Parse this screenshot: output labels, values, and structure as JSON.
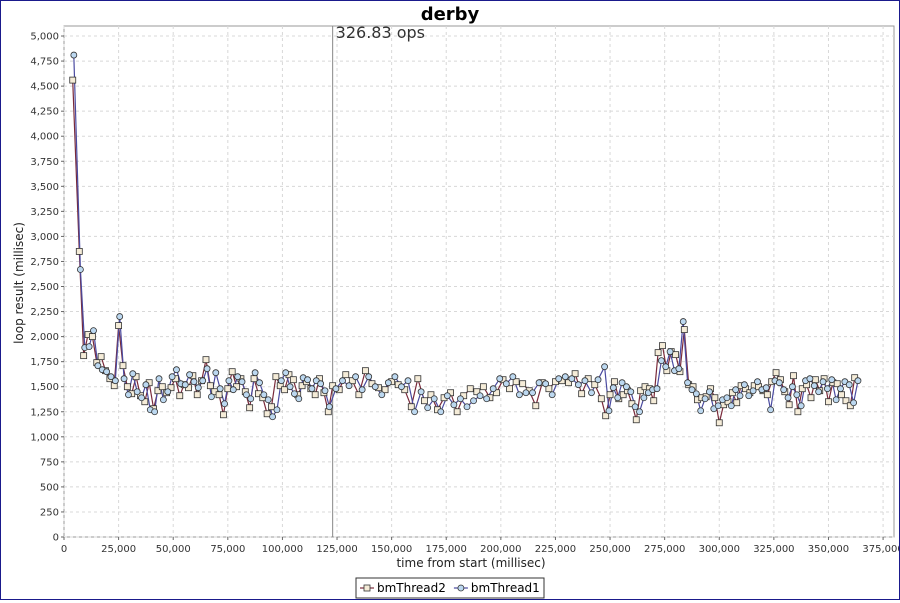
{
  "chart_data": {
    "type": "line",
    "title": "derby",
    "xlabel": "time from start (millisec)",
    "ylabel": "loop result (millisec)",
    "xlim": [
      0,
      380000
    ],
    "ylim": [
      0,
      5100
    ],
    "x_ticks": [
      0,
      25000,
      50000,
      75000,
      100000,
      125000,
      150000,
      175000,
      200000,
      225000,
      250000,
      275000,
      300000,
      325000,
      350000,
      375000
    ],
    "x_tick_labels": [
      "0",
      "25,000",
      "50,000",
      "75,000",
      "100,000",
      "125,000",
      "150,000",
      "175,000",
      "200,000",
      "225,000",
      "250,000",
      "275,000",
      "300,000",
      "325,000",
      "350,000",
      "375,000"
    ],
    "y_ticks": [
      0,
      250,
      500,
      750,
      1000,
      1250,
      1500,
      1750,
      2000,
      2250,
      2500,
      2750,
      3000,
      3250,
      3500,
      3750,
      4000,
      4250,
      4500,
      4750,
      5000
    ],
    "y_tick_labels": [
      "0",
      "250",
      "500",
      "750",
      "1,000",
      "1,250",
      "1,500",
      "1,750",
      "2,000",
      "2,250",
      "2,500",
      "2,750",
      "3,000",
      "3,250",
      "3,500",
      "3,750",
      "4,000",
      "4,250",
      "4,500",
      "4,750",
      "5,000"
    ],
    "grid": true,
    "legend_position": "bottom-center",
    "annotation": {
      "x": 123000,
      "label": "326.83 ops"
    },
    "series": [
      {
        "name": "bmThread2",
        "marker": "square",
        "color": "#7a2a3a",
        "x": [
          4000,
          7000,
          9000,
          11000,
          13000,
          15000,
          17000,
          19000,
          21000,
          23000,
          25000,
          27000,
          29000,
          31000,
          33000,
          35000,
          37000,
          39000,
          41000,
          43000,
          45000,
          47000,
          49000,
          51000,
          53000,
          55000,
          57000,
          59000,
          61000,
          63000,
          65000,
          67000,
          69000,
          71000,
          73000,
          75000,
          77000,
          79000,
          81000,
          83000,
          85000,
          87000,
          89000,
          91000,
          93000,
          95000,
          97000,
          99000,
          101000,
          103000,
          105000,
          107000,
          109000,
          111000,
          113000,
          115000,
          117000,
          119000,
          121000,
          123000,
          126000,
          129000,
          132000,
          135000,
          138000,
          141000,
          144000,
          147000,
          150000,
          153000,
          156000,
          159000,
          162000,
          165000,
          168000,
          171000,
          174000,
          177000,
          180000,
          183000,
          186000,
          189000,
          192000,
          195000,
          198000,
          201000,
          204000,
          207000,
          210000,
          213000,
          216000,
          219000,
          222000,
          225000,
          228000,
          231000,
          234000,
          237000,
          240000,
          243000,
          246000,
          248000,
          250000,
          252000,
          254000,
          256000,
          258000,
          260000,
          262000,
          264000,
          266000,
          268000,
          270000,
          272000,
          274000,
          276000,
          278000,
          280000,
          282000,
          284000,
          286000,
          288000,
          290000,
          292000,
          294000,
          296000,
          298000,
          300000,
          302000,
          304000,
          306000,
          308000,
          310000,
          312000,
          314000,
          316000,
          318000,
          320000,
          322000,
          324000,
          326000,
          328000,
          330000,
          332000,
          334000,
          336000,
          338000,
          340000,
          342000,
          344000,
          346000,
          348000,
          350000,
          352000,
          354000,
          356000,
          358000,
          360000,
          362000
        ],
        "values": [
          4560,
          2850,
          1810,
          2020,
          2000,
          1740,
          1800,
          1660,
          1580,
          1510,
          2110,
          1710,
          1500,
          1430,
          1600,
          1410,
          1350,
          1540,
          1280,
          1460,
          1500,
          1440,
          1490,
          1580,
          1410,
          1520,
          1490,
          1610,
          1420,
          1560,
          1770,
          1510,
          1450,
          1420,
          1220,
          1480,
          1650,
          1500,
          1580,
          1450,
          1290,
          1580,
          1430,
          1390,
          1230,
          1300,
          1600,
          1510,
          1470,
          1620,
          1570,
          1420,
          1510,
          1550,
          1480,
          1420,
          1580,
          1440,
          1250,
          1510,
          1470,
          1620,
          1560,
          1420,
          1660,
          1530,
          1490,
          1470,
          1550,
          1520,
          1470,
          1300,
          1580,
          1360,
          1420,
          1270,
          1390,
          1440,
          1250,
          1410,
          1480,
          1450,
          1500,
          1390,
          1440,
          1570,
          1480,
          1550,
          1530,
          1460,
          1310,
          1540,
          1480,
          1550,
          1560,
          1540,
          1630,
          1430,
          1580,
          1520,
          1380,
          1210,
          1420,
          1550,
          1380,
          1420,
          1460,
          1330,
          1170,
          1460,
          1500,
          1480,
          1360,
          1840,
          1910,
          1660,
          1850,
          1820,
          1650,
          2070,
          1520,
          1500,
          1370,
          1390,
          1400,
          1480,
          1390,
          1140,
          1320,
          1350,
          1440,
          1340,
          1510,
          1480,
          1440,
          1510,
          1500,
          1460,
          1420,
          1550,
          1640,
          1570,
          1450,
          1320,
          1610,
          1250,
          1480,
          1520,
          1390,
          1570,
          1460,
          1580,
          1350,
          1540,
          1530,
          1420,
          1360,
          1310,
          1590
        ]
      },
      {
        "name": "bmThread1",
        "marker": "circle",
        "color": "#4a4aa0",
        "x": [
          4500,
          7500,
          9500,
          11500,
          13500,
          15500,
          17500,
          19500,
          21500,
          23500,
          25500,
          27500,
          29500,
          31500,
          33500,
          35500,
          37500,
          39500,
          41500,
          43500,
          45500,
          47500,
          49500,
          51500,
          53500,
          55500,
          57500,
          59500,
          61500,
          63500,
          65500,
          67500,
          69500,
          71500,
          73500,
          75500,
          77500,
          79500,
          81500,
          83500,
          85500,
          87500,
          89500,
          91500,
          93500,
          95500,
          97500,
          99500,
          101500,
          103500,
          105500,
          107500,
          109500,
          111500,
          113500,
          115500,
          117500,
          119500,
          121500,
          124500,
          127500,
          130500,
          133500,
          136500,
          139500,
          142500,
          145500,
          148500,
          151500,
          154500,
          157500,
          160500,
          163500,
          166500,
          169500,
          172500,
          175500,
          178500,
          181500,
          184500,
          187500,
          190500,
          193500,
          196500,
          199500,
          202500,
          205500,
          208500,
          211500,
          214500,
          217500,
          220500,
          223500,
          226500,
          229500,
          232500,
          235500,
          238500,
          241500,
          244500,
          247500,
          249500,
          251500,
          253500,
          255500,
          257500,
          259500,
          261500,
          263500,
          265500,
          267500,
          269500,
          271500,
          273500,
          275500,
          277500,
          279500,
          281500,
          283500,
          285500,
          287500,
          289500,
          291500,
          293500,
          295500,
          297500,
          299500,
          301500,
          303500,
          305500,
          307500,
          309500,
          311500,
          313500,
          315500,
          317500,
          319500,
          321500,
          323500,
          325500,
          327500,
          329500,
          331500,
          333500,
          335500,
          337500,
          339500,
          341500,
          343500,
          345500,
          347500,
          349500,
          351500,
          353500,
          355500,
          357500,
          359500,
          361500,
          363500
        ],
        "values": [
          4810,
          2670,
          1890,
          1900,
          2060,
          1710,
          1670,
          1650,
          1600,
          1560,
          2200,
          1580,
          1420,
          1630,
          1450,
          1390,
          1520,
          1270,
          1250,
          1580,
          1370,
          1450,
          1600,
          1670,
          1530,
          1520,
          1620,
          1550,
          1490,
          1560,
          1680,
          1400,
          1640,
          1480,
          1330,
          1560,
          1470,
          1600,
          1550,
          1420,
          1380,
          1640,
          1540,
          1420,
          1370,
          1200,
          1270,
          1560,
          1640,
          1500,
          1430,
          1380,
          1590,
          1570,
          1480,
          1560,
          1530,
          1460,
          1300,
          1480,
          1560,
          1510,
          1600,
          1470,
          1600,
          1500,
          1420,
          1540,
          1600,
          1500,
          1560,
          1250,
          1450,
          1290,
          1380,
          1250,
          1410,
          1320,
          1380,
          1300,
          1360,
          1410,
          1380,
          1480,
          1580,
          1530,
          1600,
          1420,
          1440,
          1440,
          1540,
          1530,
          1420,
          1580,
          1600,
          1580,
          1520,
          1560,
          1440,
          1570,
          1700,
          1260,
          1490,
          1390,
          1540,
          1500,
          1450,
          1300,
          1250,
          1390,
          1440,
          1470,
          1480,
          1760,
          1700,
          1850,
          1660,
          1680,
          2150,
          1540,
          1470,
          1430,
          1260,
          1380,
          1450,
          1280,
          1310,
          1370,
          1390,
          1310,
          1470,
          1410,
          1520,
          1410,
          1460,
          1550,
          1470,
          1490,
          1270,
          1560,
          1540,
          1470,
          1390,
          1500,
          1420,
          1310,
          1560,
          1580,
          1510,
          1450,
          1550,
          1480,
          1570,
          1370,
          1480,
          1550,
          1520,
          1340,
          1560
        ]
      }
    ]
  }
}
